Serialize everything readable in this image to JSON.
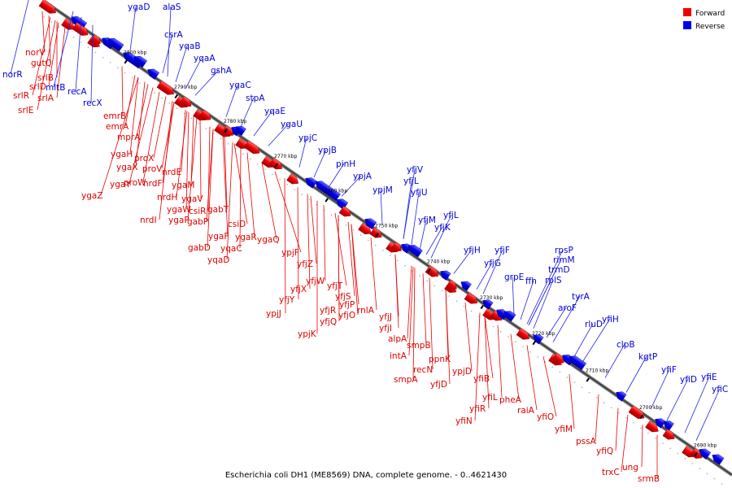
{
  "legend": {
    "forward_label": "Forward",
    "reverse_label": "Reverse",
    "forward_color": "#ee0000",
    "reverse_color": "#0000ee"
  },
  "caption": "Escherichia coli DH1 (ME8569) DNA, complete genome. - 0..4621430",
  "ticks": [
    "2800 kbp",
    "2790 kbp",
    "2780 kbp",
    "2770 kbp",
    "2760 kbp",
    "2750 kbp",
    "2740 kbp",
    "2730 kbp",
    "2720 kbp",
    "2710 kbp",
    "2700 kbp",
    "2690 kbp"
  ],
  "reverse_genes": [
    "ygaD",
    "alaS",
    "csrA",
    "yqaB",
    "yqaA",
    "gshA",
    "ygaC",
    "stpA",
    "yqaE",
    "ygaU",
    "ypjC",
    "ypjB",
    "pinH",
    "ypjA",
    "yfjV",
    "ypjM",
    "yfjL",
    "yfjU",
    "yfjM",
    "yfjL",
    "yfjK",
    "yfjH",
    "yfjF",
    "yfjG",
    "rpsP",
    "rimM",
    "trmD",
    "ffh",
    "grpE",
    "rplS",
    "tyrA",
    "aroF",
    "yfiH",
    "rluD",
    "clpB",
    "kgtP",
    "yfiF",
    "yfiD",
    "yfiE",
    "yfiC",
    "norR",
    "recA",
    "recX",
    "mltB"
  ],
  "forward_genes": [
    "norV",
    "gutQ",
    "srlB",
    "srlD",
    "srlR",
    "srlA",
    "srlE",
    "emrB",
    "emrA",
    "mprA",
    "ygaH",
    "proX",
    "proV",
    "ygaX",
    "ygaY",
    "proW",
    "nrdE",
    "nrdF",
    "ygaZ",
    "ygaM",
    "nrdH",
    "ygaV",
    "nrdI",
    "ygaW",
    "csiR",
    "gabT",
    "ygaP",
    "gabP",
    "csiD",
    "ygaF",
    "ygaR",
    "gabD",
    "yqaC",
    "ygaQ",
    "yqaD",
    "ypjF",
    "yfjZ",
    "yfjW",
    "yfjT",
    "yfjX",
    "yfjY",
    "yfjS",
    "yfjP",
    "ypjJ",
    "yfjR",
    "yfjQ",
    "yfjO",
    "ypjK",
    "rnlA",
    "yfjJ",
    "yfjI",
    "alpA",
    "smpB",
    "intA",
    "ppnK",
    "recN",
    "smpA",
    "ypjD",
    "yfjD",
    "yfiB",
    "yfiL",
    "pheA",
    "yfiR",
    "raiA",
    "yfiO",
    "yfiN",
    "yfiM",
    "pssA",
    "yfiQ",
    "trxC",
    "ung",
    "srmB"
  ]
}
